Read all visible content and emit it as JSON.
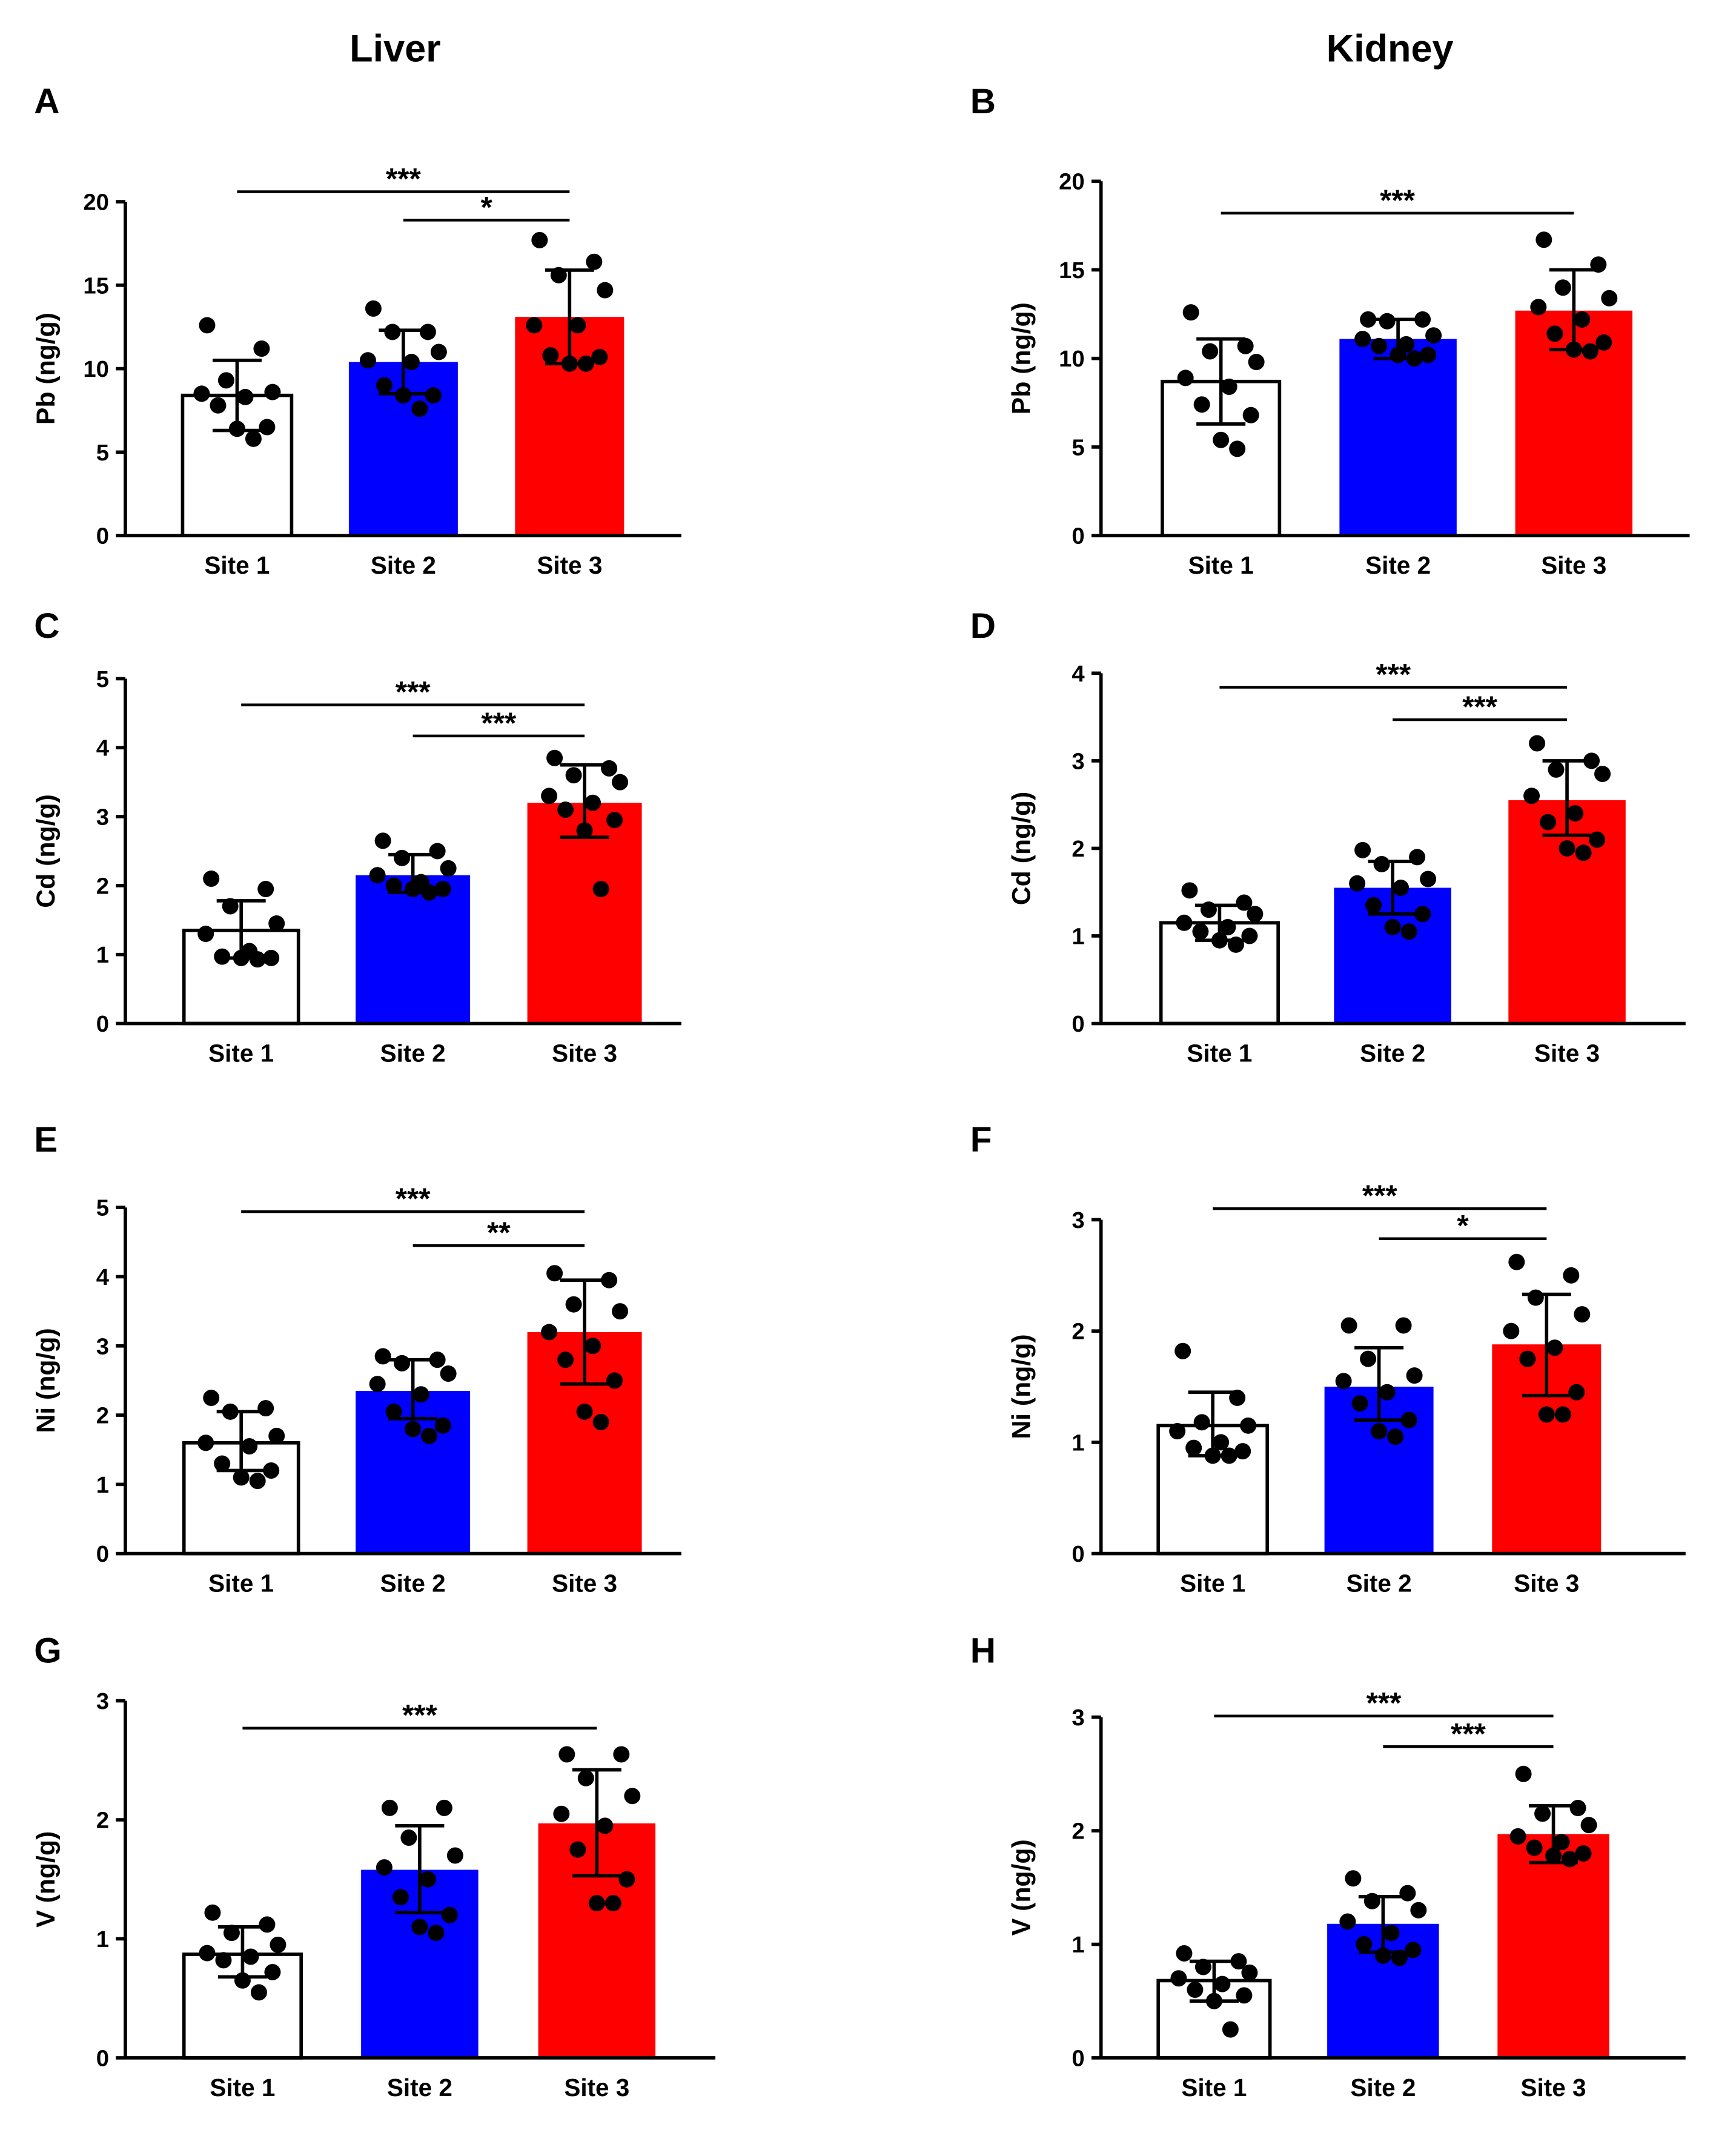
{
  "column_titles": [
    "Liver",
    "Kidney"
  ],
  "colors": {
    "site1": "#ffffff",
    "site2": "#0000ff",
    "site3": "#ff0000",
    "axis": "#000000"
  },
  "chart_data": [
    {
      "panel": "A",
      "type": "bar",
      "ylabel": "Pb (ng/g)",
      "ylim": [
        0,
        20
      ],
      "yticks": [
        0,
        5,
        10,
        15,
        20
      ],
      "categories": [
        "Site 1",
        "Site 2",
        "Site 3"
      ],
      "values": [
        8.4,
        10.4,
        13.1
      ],
      "error": [
        [
          6.3,
          10.5
        ],
        [
          8.5,
          12.3
        ],
        [
          10.3,
          15.9
        ]
      ],
      "points": [
        [
          12.6,
          11.2,
          9.3,
          8.6,
          8.5,
          8.3,
          7.8,
          6.5,
          6.4,
          5.8
        ],
        [
          13.6,
          12.2,
          12.2,
          11.0,
          10.5,
          10.4,
          9.0,
          8.4,
          8.4,
          7.6
        ],
        [
          17.7,
          16.4,
          15.6,
          14.7,
          12.6,
          12.6,
          10.8,
          10.7,
          10.3,
          10.3
        ]
      ],
      "significance": [
        {
          "from": 0,
          "to": 2,
          "label": "***",
          "y": 20.6
        },
        {
          "from": 1,
          "to": 2,
          "label": "*",
          "y": 18.9
        }
      ]
    },
    {
      "panel": "B",
      "type": "bar",
      "ylabel": "Pb (ng/g)",
      "ylim": [
        0,
        20
      ],
      "yticks": [
        0,
        5,
        10,
        15,
        20
      ],
      "categories": [
        "Site 1",
        "Site 2",
        "Site 3"
      ],
      "values": [
        8.7,
        11.1,
        12.7
      ],
      "error": [
        [
          6.3,
          11.1
        ],
        [
          10.0,
          12.2
        ],
        [
          10.5,
          15.0
        ]
      ],
      "points": [
        [
          12.6,
          10.7,
          10.4,
          9.8,
          8.9,
          8.4,
          7.4,
          6.8,
          5.4,
          4.9
        ],
        [
          12.2,
          12.2,
          12.1,
          11.3,
          11.1,
          10.8,
          10.7,
          10.2,
          10.2,
          10.0
        ],
        [
          16.7,
          15.3,
          14.0,
          13.4,
          12.9,
          12.2,
          11.4,
          10.9,
          10.5,
          10.4
        ]
      ],
      "significance": [
        {
          "from": 0,
          "to": 2,
          "label": "***",
          "y": 18.2
        }
      ]
    },
    {
      "panel": "C",
      "type": "bar",
      "ylabel": "Cd (ng/g)",
      "ylim": [
        0,
        5
      ],
      "yticks": [
        0,
        1,
        2,
        3,
        4,
        5
      ],
      "categories": [
        "Site 1",
        "Site 2",
        "Site 3"
      ],
      "values": [
        1.35,
        2.15,
        3.2
      ],
      "error": [
        [
          0.95,
          1.78
        ],
        [
          1.9,
          2.45
        ],
        [
          2.7,
          3.75
        ]
      ],
      "points": [
        [
          2.1,
          1.95,
          1.7,
          1.45,
          1.3,
          1.05,
          0.97,
          0.95,
          0.95,
          0.93
        ],
        [
          2.65,
          2.5,
          2.4,
          2.25,
          2.15,
          2.05,
          2.0,
          1.95,
          1.95,
          1.9
        ],
        [
          3.85,
          3.7,
          3.6,
          3.5,
          3.3,
          3.2,
          3.1,
          2.95,
          2.8,
          1.95
        ]
      ],
      "significance": [
        {
          "from": 0,
          "to": 2,
          "label": "***",
          "y": 4.62
        },
        {
          "from": 1,
          "to": 2,
          "label": "***",
          "y": 4.17
        }
      ]
    },
    {
      "panel": "D",
      "type": "bar",
      "ylabel": "Cd (ng/g)",
      "ylim": [
        0,
        4
      ],
      "yticks": [
        0,
        1,
        2,
        3,
        4
      ],
      "categories": [
        "Site 1",
        "Site 2",
        "Site 3"
      ],
      "values": [
        1.15,
        1.55,
        2.55
      ],
      "error": [
        [
          0.95,
          1.35
        ],
        [
          1.25,
          1.85
        ],
        [
          2.15,
          3.0
        ]
      ],
      "points": [
        [
          1.52,
          1.38,
          1.3,
          1.25,
          1.15,
          1.1,
          1.05,
          1.0,
          0.95,
          0.9
        ],
        [
          1.98,
          1.9,
          1.82,
          1.65,
          1.6,
          1.55,
          1.35,
          1.25,
          1.1,
          1.05
        ],
        [
          3.2,
          3.0,
          2.9,
          2.85,
          2.6,
          2.4,
          2.3,
          2.1,
          2.0,
          1.95
        ]
      ],
      "significance": [
        {
          "from": 0,
          "to": 2,
          "label": "***",
          "y": 3.84
        },
        {
          "from": 1,
          "to": 2,
          "label": "***",
          "y": 3.47
        }
      ]
    },
    {
      "panel": "E",
      "type": "bar",
      "ylabel": "Ni (ng/g)",
      "ylim": [
        0,
        5
      ],
      "yticks": [
        0,
        1,
        2,
        3,
        4,
        5
      ],
      "categories": [
        "Site 1",
        "Site 2",
        "Site 3"
      ],
      "values": [
        1.6,
        2.35,
        3.2
      ],
      "error": [
        [
          1.2,
          2.05
        ],
        [
          1.95,
          2.8
        ],
        [
          2.45,
          3.95
        ]
      ],
      "points": [
        [
          2.25,
          2.1,
          2.05,
          1.7,
          1.6,
          1.55,
          1.3,
          1.2,
          1.1,
          1.05
        ],
        [
          2.85,
          2.8,
          2.75,
          2.6,
          2.45,
          2.3,
          2.05,
          1.85,
          1.8,
          1.7
        ],
        [
          4.05,
          3.95,
          3.6,
          3.5,
          3.2,
          3.0,
          2.8,
          2.5,
          2.05,
          1.9
        ]
      ],
      "significance": [
        {
          "from": 0,
          "to": 2,
          "label": "***",
          "y": 4.94
        },
        {
          "from": 1,
          "to": 2,
          "label": "**",
          "y": 4.45
        }
      ]
    },
    {
      "panel": "F",
      "type": "bar",
      "ylabel": "Ni (ng/g)",
      "ylim": [
        0,
        3
      ],
      "yticks": [
        0,
        1,
        2,
        3
      ],
      "categories": [
        "Site 1",
        "Site 2",
        "Site 3"
      ],
      "values": [
        1.15,
        1.5,
        1.88
      ],
      "error": [
        [
          0.88,
          1.45
        ],
        [
          1.2,
          1.85
        ],
        [
          1.42,
          2.33
        ]
      ],
      "points": [
        [
          1.82,
          1.4,
          1.18,
          1.15,
          1.1,
          1.0,
          0.95,
          0.92,
          0.88,
          0.88
        ],
        [
          2.05,
          2.05,
          1.75,
          1.6,
          1.55,
          1.45,
          1.35,
          1.2,
          1.1,
          1.05
        ],
        [
          2.62,
          2.5,
          2.3,
          2.15,
          2.0,
          1.85,
          1.75,
          1.45,
          1.25,
          1.25
        ]
      ],
      "significance": [
        {
          "from": 0,
          "to": 2,
          "label": "***",
          "y": 3.1
        },
        {
          "from": 1,
          "to": 2,
          "label": "*",
          "y": 2.83
        }
      ]
    },
    {
      "panel": "G",
      "type": "bar",
      "ylabel": "V (ng/g)",
      "ylim": [
        0,
        3
      ],
      "yticks": [
        0,
        1,
        2,
        3
      ],
      "categories": [
        "Site 1",
        "Site 2",
        "Site 3"
      ],
      "values": [
        0.87,
        1.58,
        1.97
      ],
      "error": [
        [
          0.68,
          1.1
        ],
        [
          1.22,
          1.95
        ],
        [
          1.53,
          2.42
        ]
      ],
      "points": [
        [
          1.22,
          1.12,
          1.05,
          0.95,
          0.88,
          0.85,
          0.82,
          0.72,
          0.65,
          0.55
        ],
        [
          2.1,
          2.1,
          1.85,
          1.7,
          1.6,
          1.5,
          1.35,
          1.2,
          1.1,
          1.05
        ],
        [
          2.55,
          2.55,
          2.35,
          2.2,
          2.05,
          1.95,
          1.75,
          1.5,
          1.3,
          1.3
        ]
      ],
      "significance": [
        {
          "from": 0,
          "to": 2,
          "label": "***",
          "y": 2.77
        }
      ]
    },
    {
      "panel": "H",
      "type": "bar",
      "ylabel": "V (ng/g)",
      "ylim": [
        0,
        3
      ],
      "yticks": [
        0,
        1,
        2,
        3
      ],
      "categories": [
        "Site 1",
        "Site 2",
        "Site 3"
      ],
      "values": [
        0.68,
        1.18,
        1.97
      ],
      "error": [
        [
          0.5,
          0.85
        ],
        [
          0.93,
          1.42
        ],
        [
          1.72,
          2.22
        ]
      ],
      "points": [
        [
          0.92,
          0.85,
          0.8,
          0.75,
          0.7,
          0.65,
          0.6,
          0.55,
          0.5,
          0.25
        ],
        [
          1.58,
          1.45,
          1.38,
          1.3,
          1.2,
          1.1,
          1.0,
          0.95,
          0.9,
          0.88
        ],
        [
          2.5,
          2.2,
          2.15,
          2.05,
          1.95,
          1.9,
          1.85,
          1.8,
          1.78,
          1.75
        ]
      ],
      "significance": [
        {
          "from": 0,
          "to": 2,
          "label": "***",
          "y": 3.01
        },
        {
          "from": 1,
          "to": 2,
          "label": "***",
          "y": 2.74
        }
      ]
    }
  ]
}
